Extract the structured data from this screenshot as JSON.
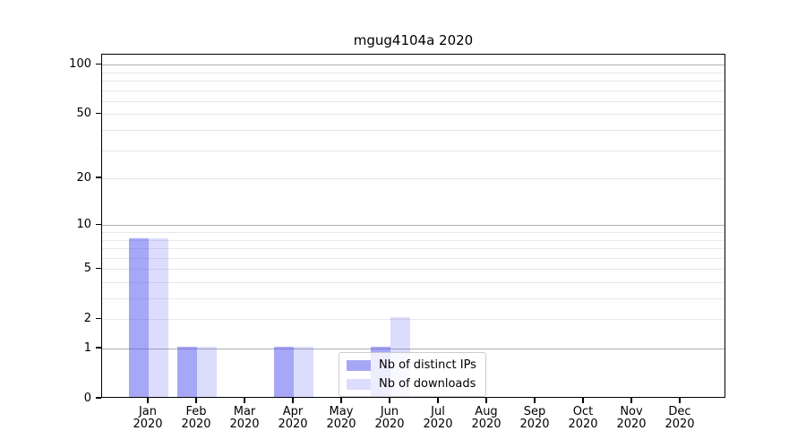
{
  "title": "mgug4104a 2020",
  "chart_data": {
    "type": "bar",
    "title": "mgug4104a 2020",
    "categories": [
      "Jan 2020",
      "Feb 2020",
      "Mar 2020",
      "Apr 2020",
      "May 2020",
      "Jun 2020",
      "Jul 2020",
      "Aug 2020",
      "Sep 2020",
      "Oct 2020",
      "Nov 2020",
      "Dec 2020"
    ],
    "series": [
      {
        "name": "Nb of distinct IPs",
        "color": "rgba(80,80,240,0.5)",
        "values": [
          8,
          1,
          0,
          1,
          0,
          1,
          0,
          0,
          0,
          0,
          0,
          0
        ]
      },
      {
        "name": "Nb of downloads",
        "color": "rgba(80,80,240,0.2)",
        "values": [
          8,
          1,
          0,
          1,
          0,
          2,
          0,
          0,
          0,
          0,
          0,
          0
        ]
      }
    ],
    "xlabel": "",
    "ylabel": "",
    "y_axis": {
      "scale": "symlog-ln(1+v)",
      "tick_values": [
        0,
        1,
        2,
        5,
        10,
        20,
        50,
        100
      ],
      "major_grid": [
        1,
        10,
        100
      ],
      "minor_grid": [
        2,
        3,
        4,
        5,
        6,
        7,
        8,
        9,
        20,
        30,
        40,
        50,
        60,
        70,
        80,
        90
      ],
      "ylim": [
        0,
        115
      ]
    },
    "grid": "horizontal",
    "legend_position": "inside-bottom-center"
  },
  "colors": {
    "bar_distinct_ips": "rgba(80,80,240,0.5)",
    "bar_downloads": "rgba(80,80,240,0.2)",
    "grid_major": "#b0b0b0",
    "grid_minor": "#e8e8e8",
    "axis": "#000000",
    "legend_border": "#cccccc"
  }
}
